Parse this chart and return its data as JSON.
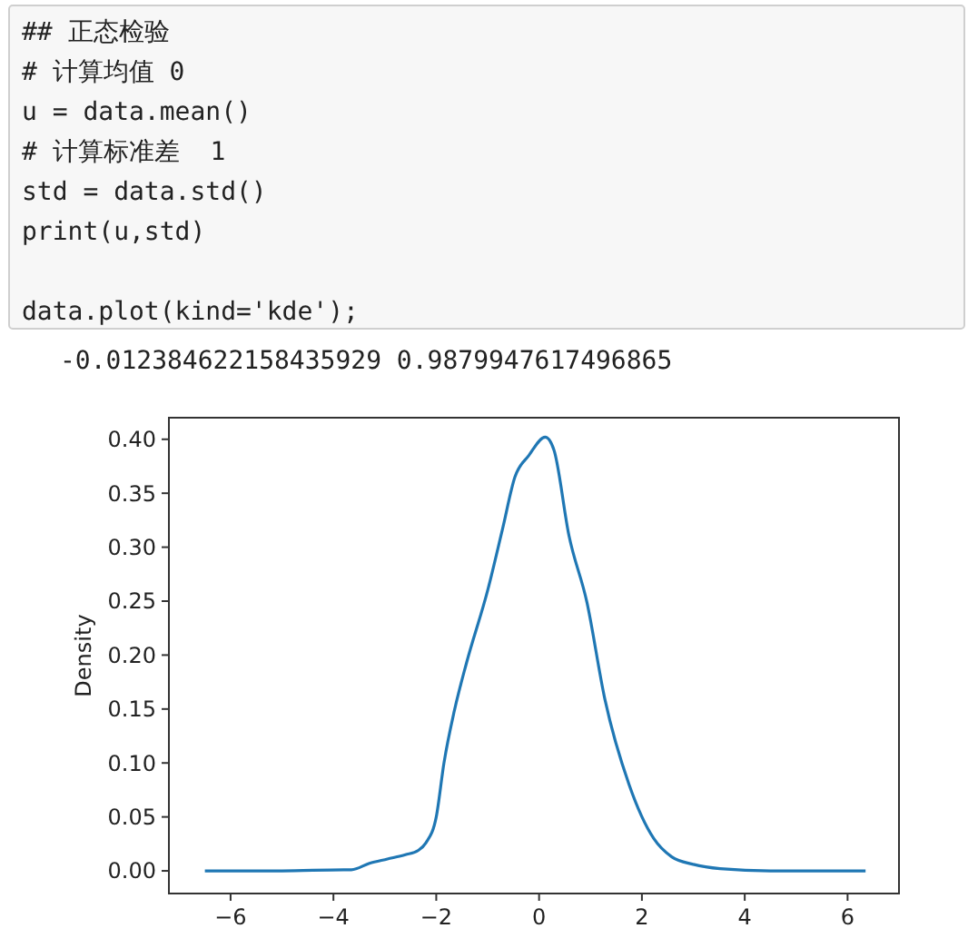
{
  "chart_data": {
    "type": "line",
    "ylabel": "Density",
    "annotations": [
      "## 正态检验",
      "# 计算均值 0",
      "u = data.mean()",
      "# 计算标准差  1",
      "std = data.std()",
      "print(u,std)",
      "data.plot(kind='kde');",
      "-0.012384622158435929 0.9879947617496865"
    ],
    "x": [
      -6.5,
      -5,
      -3.8,
      -3.65,
      -3.3,
      -2.95,
      -2.6,
      -2.35,
      -2.2,
      -2.0,
      -1.85,
      -1.65,
      -1.41,
      -1.0,
      -0.71,
      -0.47,
      -0.2,
      0.12,
      0.29,
      0.58,
      0.93,
      1.28,
      1.75,
      2.23,
      2.58,
      3.0,
      3.52,
      4.5,
      6.35
    ],
    "series": [
      {
        "color": "#1f77b4",
        "values": [
          0,
          0,
          0.001,
          0.001,
          0.007,
          0.011,
          0.015,
          0.019,
          0.026,
          0.05,
          0.1,
          0.148,
          0.193,
          0.26,
          0.317,
          0.365,
          0.385,
          0.402,
          0.39,
          0.311,
          0.249,
          0.159,
          0.08,
          0.03,
          0.013,
          0.006,
          0.002,
          0,
          0
        ]
      }
    ],
    "xlim": [
      -7.2,
      7.0
    ],
    "ylim": [
      -0.021,
      0.42
    ],
    "xticks": [
      {
        "value": -6,
        "label": "−6"
      },
      {
        "value": -4,
        "label": "−4"
      },
      {
        "value": -2,
        "label": "−2"
      },
      0,
      2,
      4,
      6
    ],
    "yticks": [
      {
        "value": 0,
        "label": "0.00"
      },
      {
        "value": 0.05,
        "label": "0.05"
      },
      {
        "value": 0.1,
        "label": "0.10"
      },
      {
        "value": 0.15,
        "label": "0.15"
      },
      {
        "value": 0.2,
        "label": "0.20"
      },
      {
        "value": 0.25,
        "label": "0.25"
      },
      {
        "value": 0.3,
        "label": "0.30"
      },
      {
        "value": 0.35,
        "label": "0.35"
      },
      {
        "value": 0.4,
        "label": "0.40"
      }
    ],
    "grid": false
  }
}
